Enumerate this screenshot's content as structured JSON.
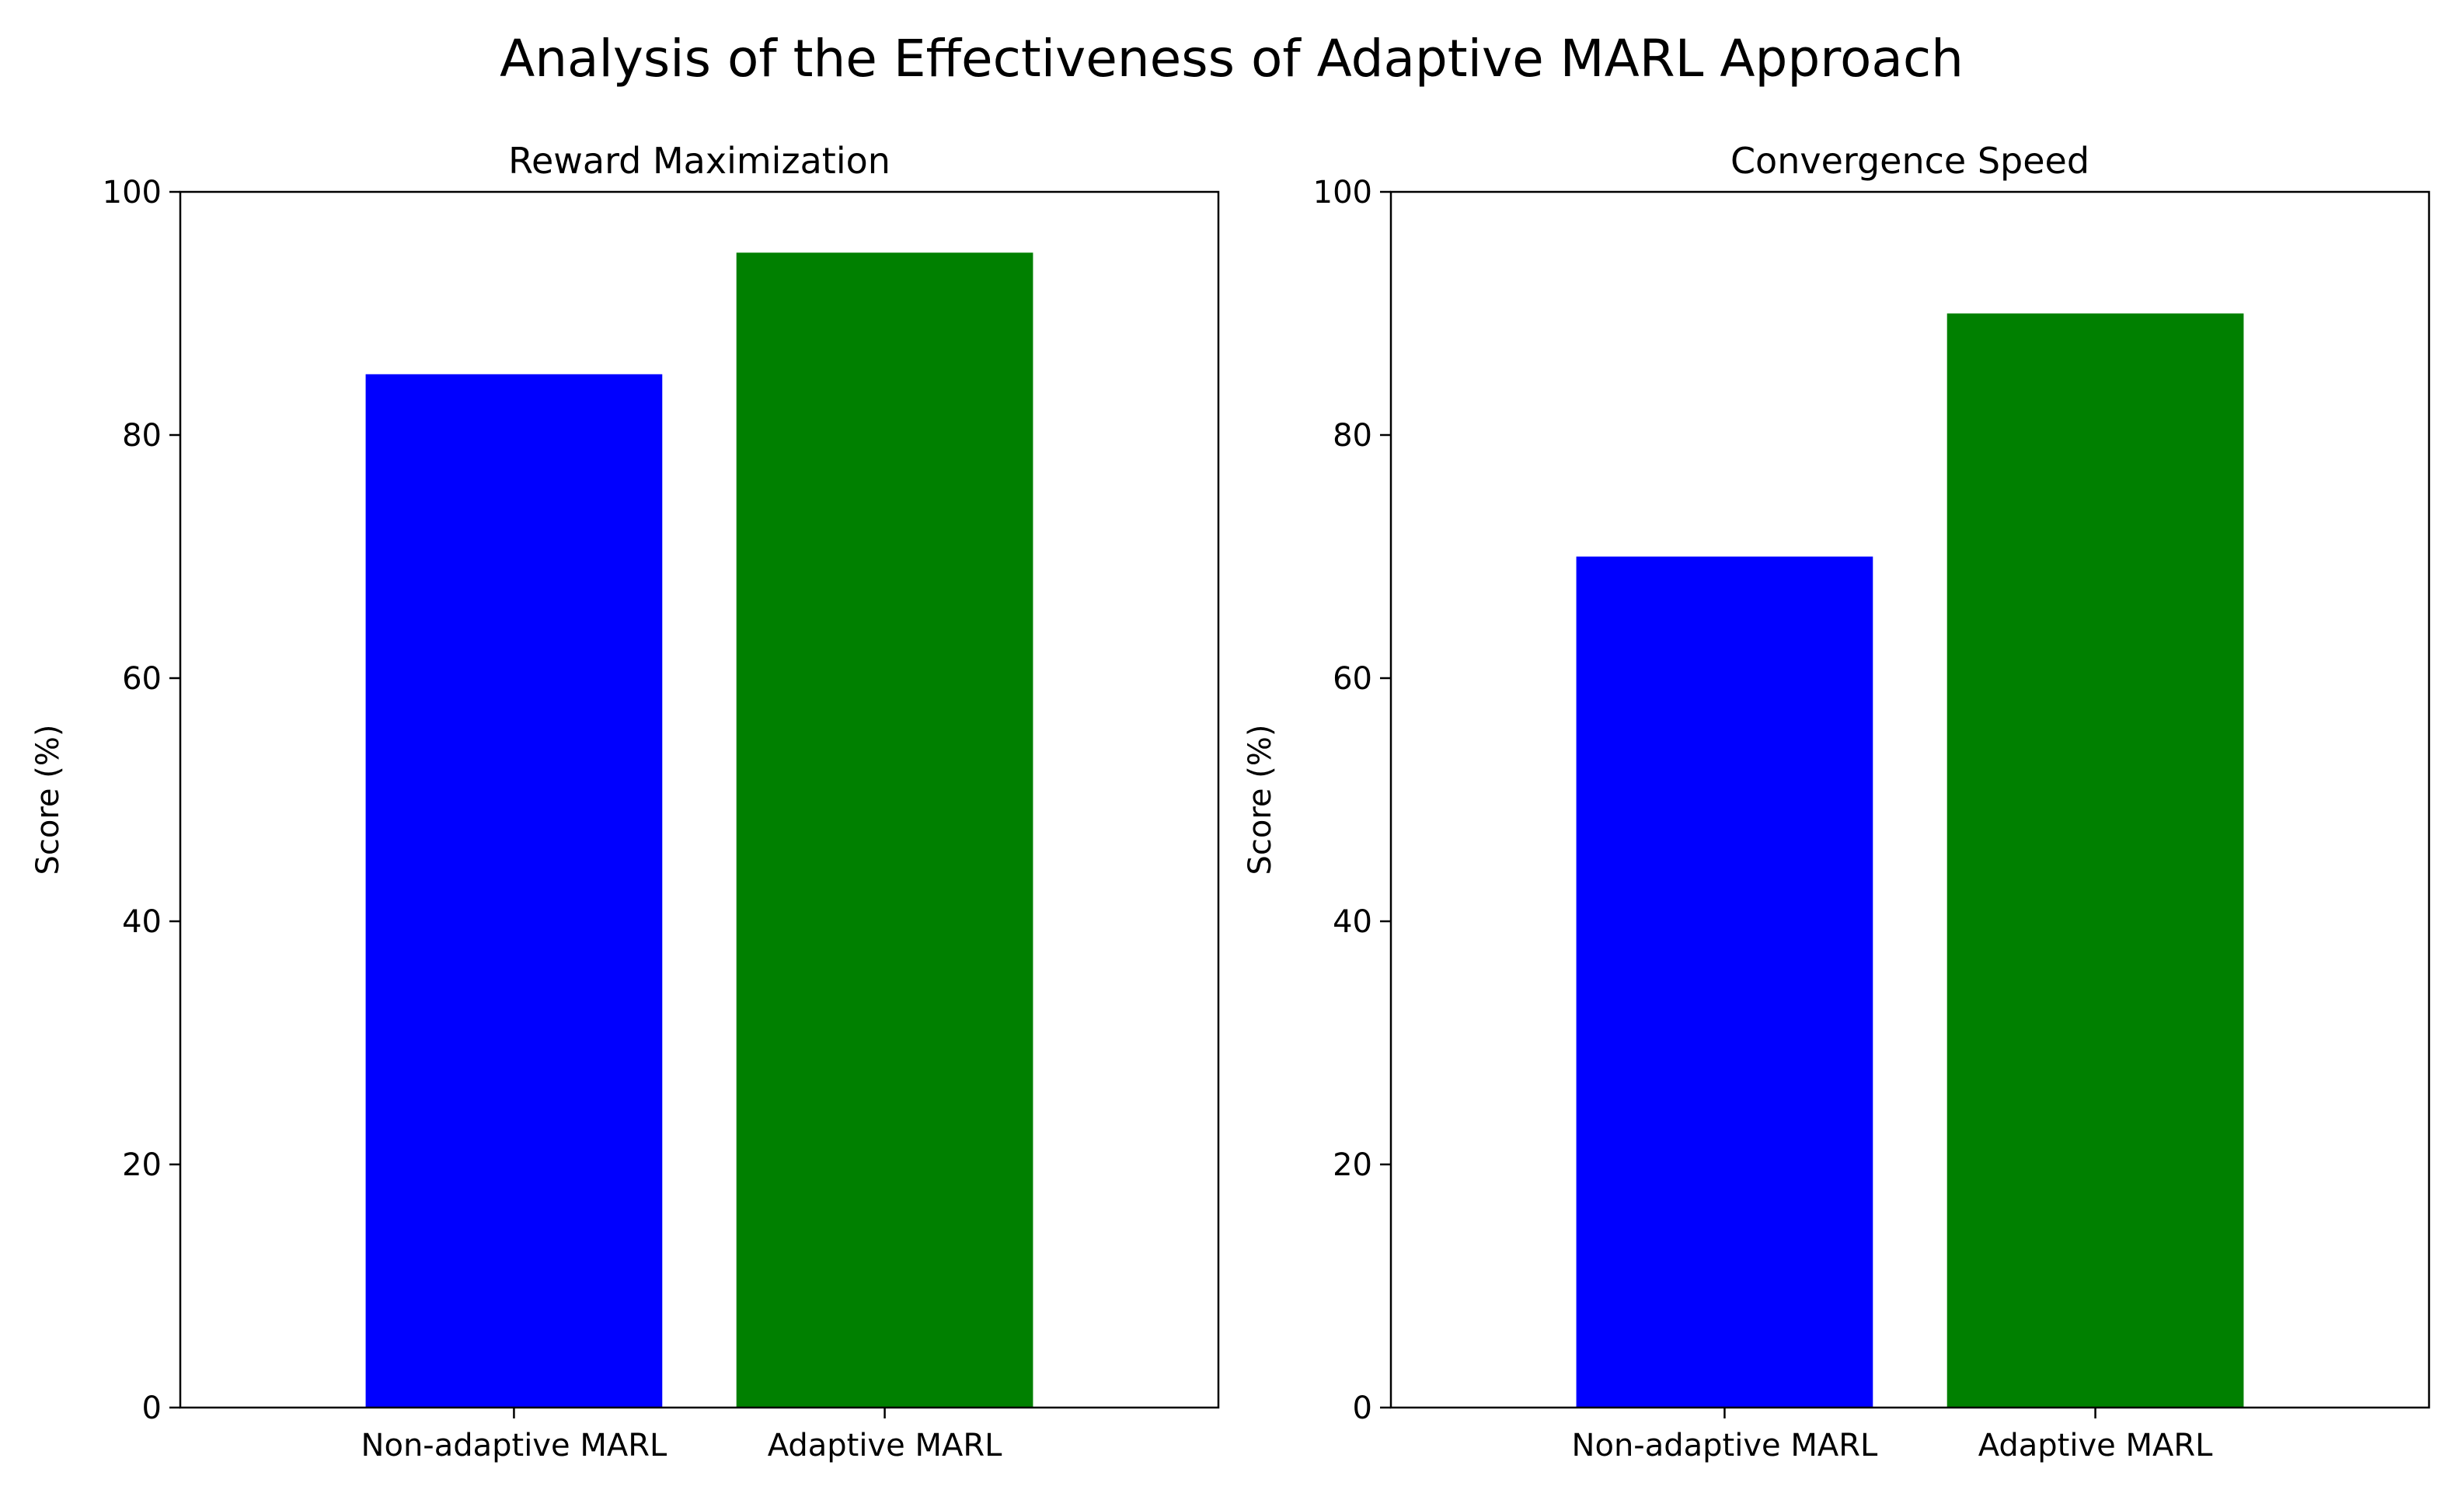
{
  "figure": {
    "title": "Analysis of the Effectiveness of Adaptive MARL Approach"
  },
  "chart_data": [
    {
      "type": "bar",
      "title": "Reward Maximization",
      "xlabel": "",
      "ylabel": "Score (%)",
      "categories": [
        "Non-adaptive MARL",
        "Adaptive MARL"
      ],
      "values": [
        85,
        95
      ],
      "colors": [
        "#0000ff",
        "#008000"
      ],
      "ylim": [
        0,
        100
      ],
      "yticks": [
        0,
        20,
        40,
        60,
        80,
        100
      ],
      "grid": false
    },
    {
      "type": "bar",
      "title": "Convergence Speed",
      "xlabel": "",
      "ylabel": "Score (%)",
      "categories": [
        "Non-adaptive MARL",
        "Adaptive MARL"
      ],
      "values": [
        70,
        90
      ],
      "colors": [
        "#0000ff",
        "#008000"
      ],
      "ylim": [
        0,
        100
      ],
      "yticks": [
        0,
        20,
        40,
        60,
        80,
        100
      ],
      "grid": false
    }
  ]
}
